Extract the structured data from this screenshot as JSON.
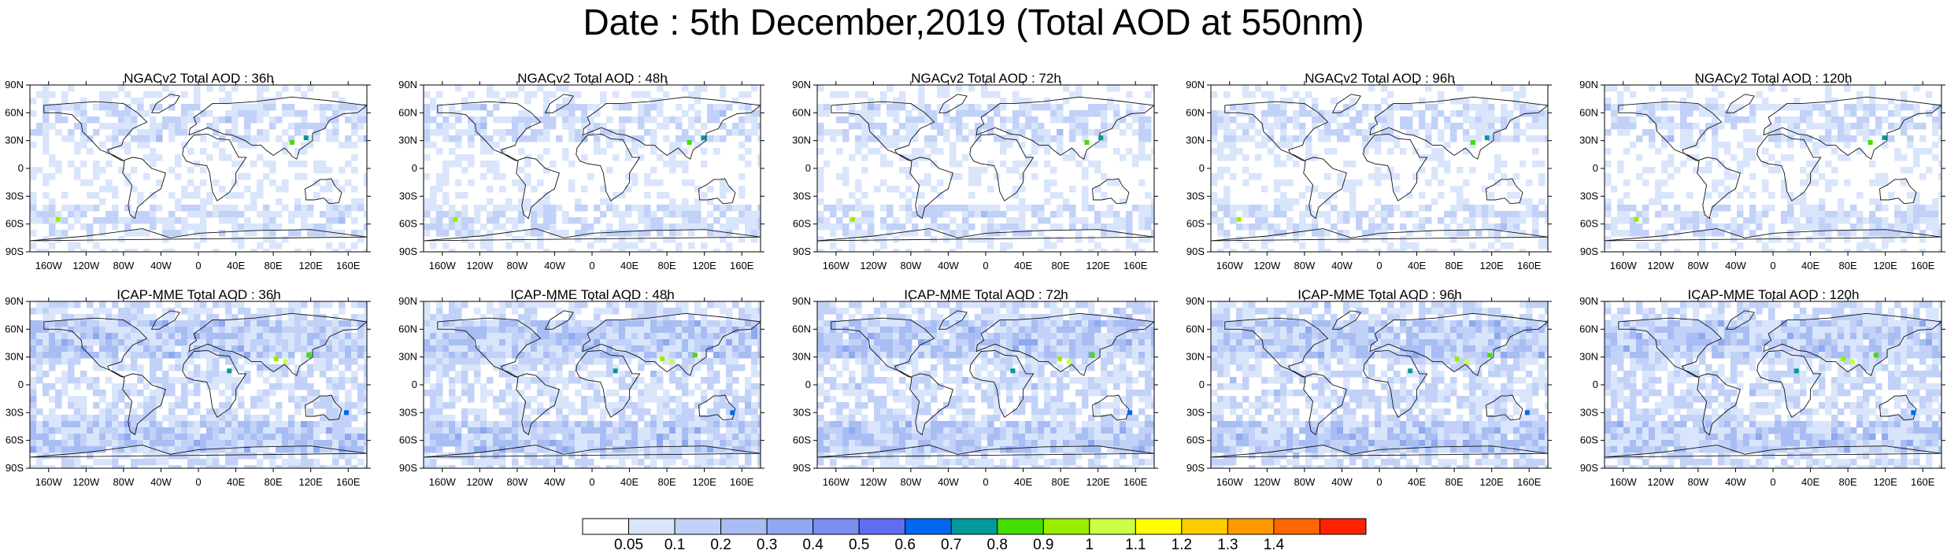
{
  "title": "Date : 5th December,2019 (Total AOD at 550nm)",
  "lat_labels": [
    "90N",
    "60N",
    "30N",
    "0",
    "30S",
    "60S",
    "90S"
  ],
  "lon_labels": [
    "160W",
    "120W",
    "80W",
    "40W",
    "0",
    "40E",
    "80E",
    "120E",
    "160E"
  ],
  "panels": [
    {
      "id": "ngac-36",
      "title": "NGACv2 Total AOD : 36h"
    },
    {
      "id": "ngac-48",
      "title": "NGACv2 Total AOD : 48h"
    },
    {
      "id": "ngac-72",
      "title": "NGACv2 Total AOD : 72h"
    },
    {
      "id": "ngac-96",
      "title": "NGACv2 Total AOD : 96h"
    },
    {
      "id": "ngac-120",
      "title": "NGACv2 Total AOD : 120h"
    },
    {
      "id": "icap-36",
      "title": "ICAP-MME Total AOD : 36h"
    },
    {
      "id": "icap-48",
      "title": "ICAP-MME Total AOD : 48h"
    },
    {
      "id": "icap-72",
      "title": "ICAP-MME Total AOD : 72h"
    },
    {
      "id": "icap-96",
      "title": "ICAP-MME Total AOD : 96h"
    },
    {
      "id": "icap-120",
      "title": "ICAP-MME Total AOD : 120h"
    }
  ],
  "colorbar": {
    "labels": [
      "0.05",
      "0.1",
      "0.2",
      "0.3",
      "0.4",
      "0.5",
      "0.6",
      "0.7",
      "0.8",
      "0.9",
      "1",
      "1.1",
      "1.2",
      "1.3",
      "1.4"
    ],
    "colors": [
      "#ffffff",
      "#d9e5fb",
      "#c2d1f7",
      "#a8bdf3",
      "#8fa9f0",
      "#7b8ef0",
      "#5e6ef0",
      "#0066ee",
      "#009999",
      "#44dd00",
      "#99ee00",
      "#ccff44",
      "#ffff00",
      "#ffcc00",
      "#ff9900",
      "#ff6600",
      "#ff2200"
    ]
  }
}
